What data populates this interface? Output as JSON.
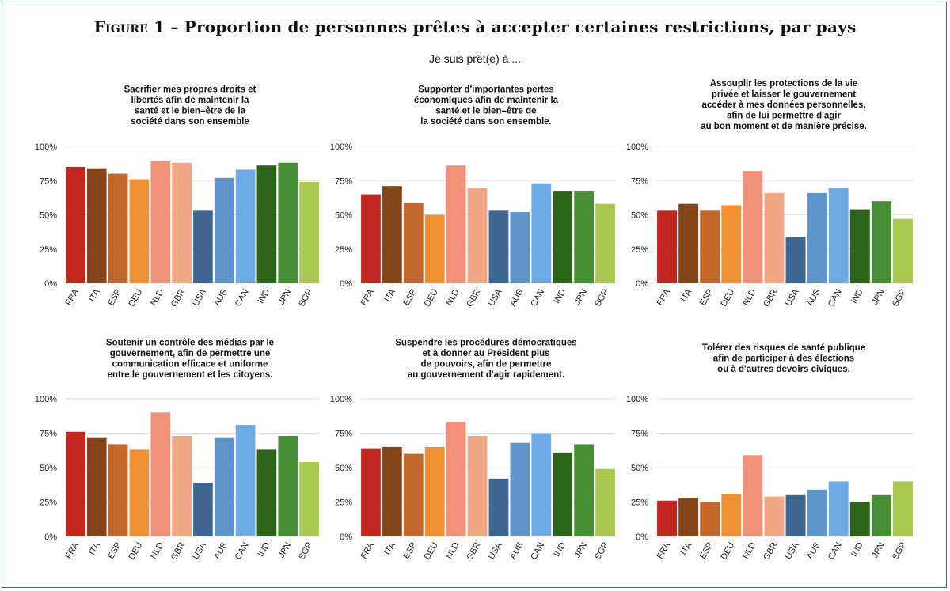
{
  "figure": {
    "label": "Figure 1",
    "title": "Proportion de personnes prêtes à accepter certaines restrictions, par pays",
    "subtitle": "Je suis prêt(e) à ..."
  },
  "colors": {
    "FRA": "#c1271f",
    "ITA": "#844519",
    "ESP": "#c4672b",
    "DEU": "#ef9033",
    "NLD": "#f29078",
    "GBR": "#f2a784",
    "USA": "#3f668e",
    "AUS": "#6095cc",
    "CAN": "#6eaae6",
    "IND": "#2b641a",
    "JPN": "#468f34",
    "SGP": "#a9c84f"
  },
  "chart_data": [
    {
      "type": "bar",
      "title": [
        "Sacrifier mes propres droits et",
        "libertés afin de maintenir la",
        "santé et le bien–être de la",
        "société dans son ensemble"
      ],
      "categories": [
        "FRA",
        "ITA",
        "ESP",
        "DEU",
        "NLD",
        "GBR",
        "USA",
        "AUS",
        "CAN",
        "IND",
        "JPN",
        "SGP"
      ],
      "values": [
        85,
        84,
        80,
        76,
        89,
        88,
        53,
        77,
        83,
        86,
        88,
        74
      ],
      "ylim": [
        0,
        100
      ],
      "yticks": [
        "0%",
        "25%",
        "50%",
        "75%",
        "100%"
      ],
      "grid": true
    },
    {
      "type": "bar",
      "title": [
        "Supporter d'importantes pertes",
        "économiques afin de maintenir la",
        "santé et le bien–être de",
        "la société dans son ensemble."
      ],
      "categories": [
        "FRA",
        "ITA",
        "ESP",
        "DEU",
        "NLD",
        "GBR",
        "USA",
        "AUS",
        "CAN",
        "IND",
        "JPN",
        "SGP"
      ],
      "values": [
        65,
        71,
        59,
        50,
        86,
        70,
        53,
        52,
        73,
        67,
        67,
        58
      ],
      "ylim": [
        0,
        100
      ],
      "yticks": [
        "0%",
        "25%",
        "50%",
        "75%",
        "100%"
      ],
      "grid": true
    },
    {
      "type": "bar",
      "title": [
        "Assouplir les protections de la vie",
        "privée et laisser le gouvernement",
        "accéder à  mes données personnelles,",
        "afin de lui permettre d'agir",
        "au bon moment et de manière précise."
      ],
      "categories": [
        "FRA",
        "ITA",
        "ESP",
        "DEU",
        "NLD",
        "GBR",
        "USA",
        "AUS",
        "CAN",
        "IND",
        "JPN",
        "SGP"
      ],
      "values": [
        53,
        58,
        53,
        57,
        82,
        66,
        34,
        66,
        70,
        54,
        60,
        47
      ],
      "ylim": [
        0,
        100
      ],
      "yticks": [
        "0%",
        "25%",
        "50%",
        "75%",
        "100%"
      ],
      "grid": true
    },
    {
      "type": "bar",
      "title": [
        "Soutenir un contrôle des médias par le",
        "gouvernement,  afin de permettre une",
        "communication efficace et uniforme",
        "entre le gouvernement et les citoyens."
      ],
      "categories": [
        "FRA",
        "ITA",
        "ESP",
        "DEU",
        "NLD",
        "GBR",
        "USA",
        "AUS",
        "CAN",
        "IND",
        "JPN",
        "SGP"
      ],
      "values": [
        76,
        72,
        67,
        63,
        90,
        73,
        39,
        72,
        81,
        63,
        73,
        54
      ],
      "ylim": [
        0,
        100
      ],
      "yticks": [
        "0%",
        "25%",
        "50%",
        "75%",
        "100%"
      ],
      "grid": true
    },
    {
      "type": "bar",
      "title": [
        "Suspendre les procédures démocratiques",
        "et à donner au Président plus",
        "de pouvoirs, afin de permettre",
        "au gouvernement d'agir rapidement."
      ],
      "categories": [
        "FRA",
        "ITA",
        "ESP",
        "DEU",
        "NLD",
        "GBR",
        "USA",
        "AUS",
        "CAN",
        "IND",
        "JPN",
        "SGP"
      ],
      "values": [
        64,
        65,
        60,
        65,
        83,
        73,
        42,
        68,
        75,
        61,
        67,
        49
      ],
      "ylim": [
        0,
        100
      ],
      "yticks": [
        "0%",
        "25%",
        "50%",
        "75%",
        "100%"
      ],
      "grid": true
    },
    {
      "type": "bar",
      "title": [
        "Tolérer des risques de santé publique",
        "afin de participer à des élections",
        "ou à d'autres devoirs civiques."
      ],
      "categories": [
        "FRA",
        "ITA",
        "ESP",
        "DEU",
        "NLD",
        "GBR",
        "USA",
        "AUS",
        "CAN",
        "IND",
        "JPN",
        "SGP"
      ],
      "values": [
        26,
        28,
        25,
        31,
        59,
        29,
        30,
        34,
        40,
        25,
        30,
        40
      ],
      "ylim": [
        0,
        100
      ],
      "yticks": [
        "0%",
        "25%",
        "50%",
        "75%",
        "100%"
      ],
      "grid": true
    }
  ]
}
